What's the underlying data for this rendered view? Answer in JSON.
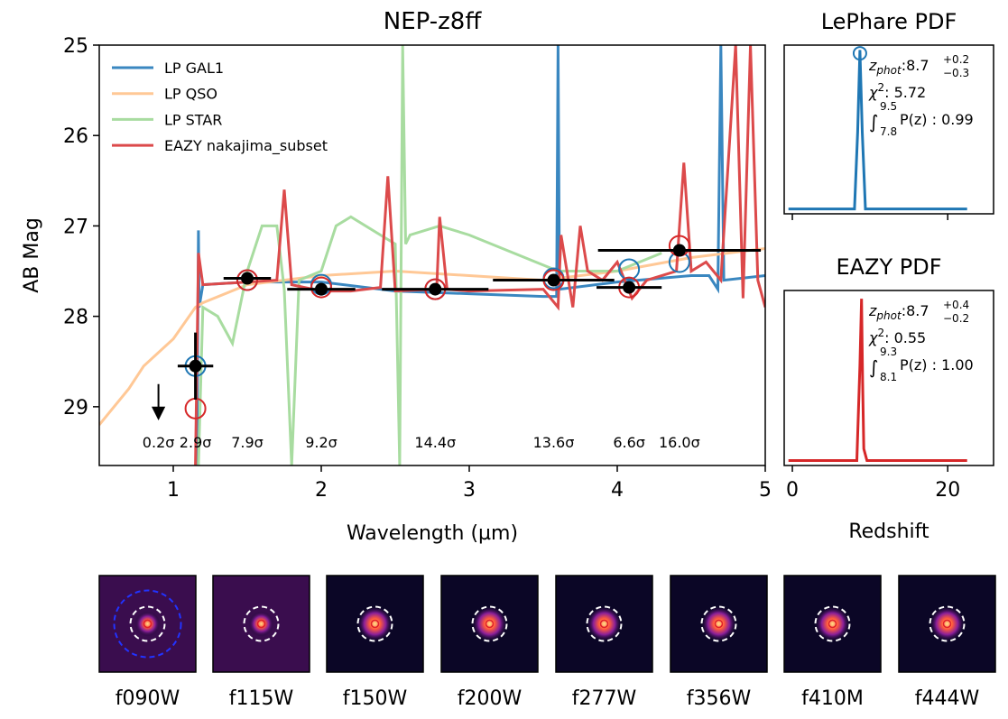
{
  "chart_data": [
    {
      "type": "line",
      "title": "NEP-z8ff",
      "x_label": "Wavelength (µm)",
      "y_label": "AB Mag",
      "xlim": [
        0.5,
        5
      ],
      "ylim": [
        25,
        29.65
      ],
      "y_inverted": true,
      "xticks": [
        1,
        2,
        3,
        4,
        5
      ],
      "yticks": [
        25,
        26,
        27,
        28,
        29
      ],
      "legend": "upper left",
      "series": [
        {
          "name": "LP GAL1",
          "color": "#3a87c0",
          "x": [
            1.16,
            1.17,
            1.175,
            1.2,
            1.5,
            2.0,
            2.5,
            3.0,
            3.5,
            3.59,
            3.6,
            3.61,
            4.0,
            4.5,
            4.62,
            4.68,
            4.7,
            4.72,
            5.0
          ],
          "values": [
            29.65,
            27.05,
            27.9,
            27.65,
            27.62,
            27.62,
            27.72,
            27.75,
            27.78,
            27.78,
            25,
            27.7,
            27.62,
            27.55,
            27.55,
            27.7,
            25,
            27.6,
            27.55
          ]
        },
        {
          "name": "LP QSO",
          "color": "#ffc896",
          "x": [
            0.5,
            0.7,
            0.8,
            1.0,
            1.15,
            1.2,
            1.5,
            2.0,
            2.5,
            3.0,
            3.5,
            4.0,
            4.5,
            5.0
          ],
          "values": [
            29.2,
            28.8,
            28.55,
            28.25,
            27.9,
            27.85,
            27.65,
            27.55,
            27.5,
            27.55,
            27.6,
            27.5,
            27.35,
            27.25
          ]
        },
        {
          "name": "LP STAR",
          "color": "#a8dca0",
          "x": [
            1.17,
            1.2,
            1.3,
            1.4,
            1.5,
            1.6,
            1.7,
            1.75,
            1.8,
            1.85,
            2.0,
            2.1,
            2.2,
            2.4,
            2.5,
            2.53,
            2.55,
            2.57,
            2.6,
            2.8,
            3.0,
            3.3,
            3.6,
            4.0,
            4.3
          ],
          "values": [
            29.65,
            27.9,
            28.0,
            28.3,
            27.5,
            27.0,
            27.0,
            27.7,
            29.65,
            27.6,
            27.5,
            27.0,
            26.9,
            27.1,
            27.2,
            29.65,
            25,
            27.2,
            27.1,
            27.0,
            27.1,
            27.3,
            27.5,
            27.5,
            27.3
          ]
        },
        {
          "name": "EAZY nakajima_subset",
          "color": "#dc4a4b",
          "x": [
            1.15,
            1.17,
            1.2,
            1.5,
            1.7,
            1.75,
            1.8,
            2.0,
            2.2,
            2.4,
            2.45,
            2.5,
            2.78,
            2.8,
            2.85,
            3.0,
            3.5,
            3.6,
            3.62,
            3.7,
            3.75,
            3.8,
            3.9,
            4.0,
            4.1,
            4.2,
            4.4,
            4.45,
            4.5,
            4.6,
            4.7,
            4.8,
            4.85,
            4.9,
            4.95,
            5.0
          ],
          "values": [
            29.65,
            27.3,
            27.65,
            27.62,
            27.6,
            26.6,
            27.65,
            27.72,
            27.72,
            27.68,
            26.45,
            27.72,
            27.7,
            26.9,
            27.7,
            27.72,
            27.7,
            27.9,
            27.1,
            27.9,
            27.0,
            27.5,
            27.6,
            27.4,
            27.8,
            27.6,
            27.5,
            26.3,
            27.5,
            27.4,
            27.6,
            25,
            27.8,
            25,
            27.6,
            27.9
          ]
        }
      ],
      "lp_points": {
        "color": "#1f77b4",
        "x": [
          1.15,
          1.5,
          2.0,
          2.77,
          3.57,
          4.08,
          4.42
        ],
        "values": [
          28.55,
          27.6,
          27.65,
          27.7,
          27.58,
          27.48,
          27.4
        ]
      },
      "eazy_points": {
        "color": "#d62728",
        "x": [
          1.15,
          1.5,
          2.0,
          2.77,
          3.57,
          4.08,
          4.42
        ],
        "values": [
          29.02,
          27.6,
          27.68,
          27.7,
          27.6,
          27.68,
          27.22
        ]
      },
      "photometry": {
        "color": "#000000",
        "x": [
          1.15,
          1.5,
          2.0,
          2.77,
          3.57,
          4.08,
          4.42
        ],
        "values": [
          28.55,
          27.58,
          27.7,
          27.7,
          27.6,
          27.68,
          27.27
        ],
        "xerr": [
          0.12,
          0.16,
          0.23,
          0.36,
          0.41,
          0.22,
          0.55
        ],
        "yerr": [
          0.37,
          0.06,
          0.07,
          0.04,
          0.04,
          0.05,
          0.03
        ]
      },
      "upper_limits": {
        "x": [
          0.9
        ],
        "values": [
          28.75
        ]
      },
      "snr": {
        "x": [
          0.9,
          1.15,
          1.5,
          2.0,
          2.77,
          3.57,
          4.08,
          4.42
        ],
        "labels": [
          "0.2σ",
          "2.9σ",
          "7.9σ",
          "9.2σ",
          "14.4σ",
          "13.6σ",
          "6.6σ",
          "16.0σ"
        ]
      }
    },
    {
      "type": "pdf",
      "title": "LePhare PDF",
      "color": "#1f77b4",
      "xlim": [
        -1.05,
        25.9
      ],
      "ylim": [
        0,
        1.03
      ],
      "xticks": [
        0,
        20
      ],
      "show_xtick_labels": false,
      "x": [
        -0.5,
        8.0,
        8.4,
        8.7,
        9.0,
        9.4,
        10.0,
        22.5
      ],
      "values": [
        0.03,
        0.03,
        0.5,
        1.0,
        0.5,
        0.03,
        0.03,
        0.03
      ],
      "peak_marker": {
        "x": 8.7,
        "value": 0.98
      },
      "annotation": {
        "z": "z",
        "sub": "phot",
        "value": ":8.7",
        "upper": "+0.2",
        "lower": "−0.3",
        "chi": "χ",
        "chi_sup": "2",
        "chi_value": ": 5.72",
        "int": "∫",
        "int_upper": "9.5",
        "int_lower": "7.8",
        "pz": "P(z) : 0.99"
      }
    },
    {
      "type": "pdf",
      "title": "EAZY PDF",
      "x_label": "Redshift",
      "color": "#d62728",
      "xlim": [
        -1.05,
        25.9
      ],
      "ylim": [
        0,
        1.05
      ],
      "xticks": [
        0,
        20
      ],
      "show_xtick_labels": true,
      "x": [
        -0.5,
        8.3,
        8.7,
        8.9,
        9.05,
        9.2,
        9.6,
        22.5
      ],
      "values": [
        0.03,
        0.03,
        0.6,
        1.0,
        0.5,
        0.1,
        0.03,
        0.03
      ],
      "annotation": {
        "z": "z",
        "sub": "phot",
        "value": ":8.7",
        "upper": "+0.4",
        "lower": "−0.2",
        "chi": "χ",
        "chi_sup": "2",
        "chi_value": ": 0.55",
        "int": "∫",
        "int_upper": "9.3",
        "int_lower": "8.1",
        "pz": "P(z) : 1.00"
      }
    }
  ],
  "thumbnails": {
    "filters": [
      "f090W",
      "f115W",
      "f150W",
      "f200W",
      "f277W",
      "f356W",
      "f410M",
      "f444W"
    ]
  }
}
